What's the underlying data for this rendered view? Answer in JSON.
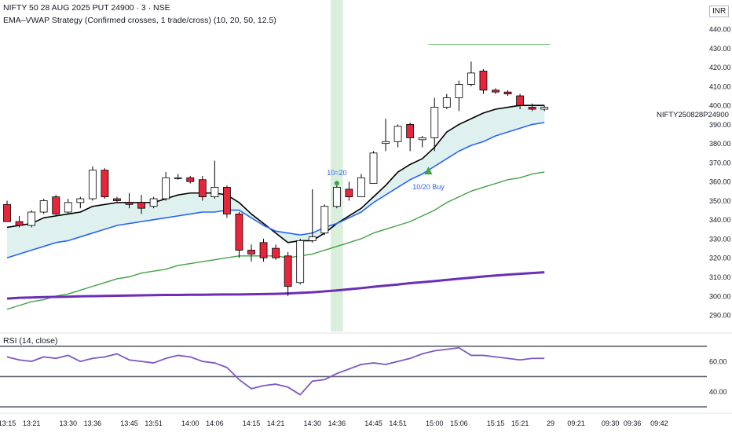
{
  "header": {
    "title": "NIFTY 50 28 AUG 2025 PUT 24900 · 3 · NSE",
    "strategy": "EMA–VWAP Strategy (Confirmed crosses, 1 trade/cross) (10, 20, 50, 12.5)",
    "currency": "INR",
    "symbol_tag": "NIFTY250828P24900"
  },
  "colors": {
    "up_fill": "#ffffff",
    "down_fill": "#e8263b",
    "candle_border": "#000000",
    "ema10": "#000000",
    "ema20": "#2962ff",
    "ema50": "#43a047",
    "vwap": "#6a2fb5",
    "band_fill": "#d8efec",
    "highlight": "#d9eedb",
    "rsi_line": "#7e57c2",
    "target_line": "#81c784",
    "signal": "#43a047",
    "signal_text": "#2962ff"
  },
  "chart_data": {
    "type": "candlestick",
    "y_ticks": [
      "290.00",
      "300.00",
      "310.00",
      "320.00",
      "330.00",
      "340.00",
      "350.00",
      "360.00",
      "370.00",
      "380.00",
      "390.00",
      "400.00",
      "410.00",
      "420.00",
      "430.00",
      "440.00"
    ],
    "ylim": [
      283,
      452
    ],
    "x_tick_labels": [
      {
        "i": 0,
        "label": "13:15"
      },
      {
        "i": 2,
        "label": "13:21"
      },
      {
        "i": 5,
        "label": "13:30"
      },
      {
        "i": 7,
        "label": "13:36"
      },
      {
        "i": 10,
        "label": "13:45"
      },
      {
        "i": 12,
        "label": "13:51"
      },
      {
        "i": 15,
        "label": "14:00"
      },
      {
        "i": 17,
        "label": "14:06"
      },
      {
        "i": 20,
        "label": "14:15"
      },
      {
        "i": 22,
        "label": "14:21"
      },
      {
        "i": 25,
        "label": "14:30"
      },
      {
        "i": 27,
        "label": "14:36"
      },
      {
        "i": 30,
        "label": "14:45"
      },
      {
        "i": 32,
        "label": "14:51"
      },
      {
        "i": 35,
        "label": "15:00"
      },
      {
        "i": 37,
        "label": "15:06"
      },
      {
        "i": 40,
        "label": "15:15"
      },
      {
        "i": 42,
        "label": "15:21"
      },
      {
        "i": 44.5,
        "label": "29"
      },
      {
        "i": 46.6,
        "label": "09:21"
      },
      {
        "i": 49.4,
        "label": "09:30"
      },
      {
        "i": 51.2,
        "label": "09:36"
      },
      {
        "i": 53.4,
        "label": "09:42"
      }
    ],
    "candles": [
      {
        "o": 348,
        "h": 350,
        "l": 340,
        "c": 339
      },
      {
        "o": 339,
        "h": 342,
        "l": 336,
        "c": 337
      },
      {
        "o": 337,
        "h": 345,
        "l": 336,
        "c": 344
      },
      {
        "o": 344,
        "h": 351,
        "l": 343,
        "c": 350
      },
      {
        "o": 352,
        "h": 353,
        "l": 342,
        "c": 343
      },
      {
        "o": 344,
        "h": 351,
        "l": 343,
        "c": 349
      },
      {
        "o": 349,
        "h": 352,
        "l": 346,
        "c": 351
      },
      {
        "o": 351,
        "h": 368,
        "l": 350,
        "c": 366
      },
      {
        "o": 366,
        "h": 367,
        "l": 351,
        "c": 352
      },
      {
        "o": 351,
        "h": 352,
        "l": 349,
        "c": 350
      },
      {
        "o": 349,
        "h": 354,
        "l": 346,
        "c": 348
      },
      {
        "o": 349,
        "h": 353,
        "l": 343,
        "c": 346
      },
      {
        "o": 347,
        "h": 352,
        "l": 346,
        "c": 351
      },
      {
        "o": 351,
        "h": 365,
        "l": 350,
        "c": 362
      },
      {
        "o": 362,
        "h": 364,
        "l": 361,
        "c": 362
      },
      {
        "o": 362,
        "h": 363,
        "l": 359,
        "c": 360
      },
      {
        "o": 361,
        "h": 363,
        "l": 350,
        "c": 352
      },
      {
        "o": 352,
        "h": 371,
        "l": 351,
        "c": 357
      },
      {
        "o": 357,
        "h": 358,
        "l": 341,
        "c": 343
      },
      {
        "o": 343,
        "h": 344,
        "l": 320,
        "c": 324
      },
      {
        "o": 324,
        "h": 327,
        "l": 318,
        "c": 322
      },
      {
        "o": 328,
        "h": 330,
        "l": 318,
        "c": 320
      },
      {
        "o": 325,
        "h": 327,
        "l": 319,
        "c": 320
      },
      {
        "o": 321,
        "h": 323,
        "l": 300,
        "c": 305
      },
      {
        "o": 307,
        "h": 330,
        "l": 306,
        "c": 329
      },
      {
        "o": 329,
        "h": 356,
        "l": 328,
        "c": 331
      },
      {
        "o": 333,
        "h": 348,
        "l": 332,
        "c": 347
      },
      {
        "o": 347,
        "h": 358,
        "l": 346,
        "c": 357
      },
      {
        "o": 356,
        "h": 360,
        "l": 350,
        "c": 352
      },
      {
        "o": 352,
        "h": 364,
        "l": 352,
        "c": 362
      },
      {
        "o": 359,
        "h": 376,
        "l": 359,
        "c": 375
      },
      {
        "o": 380,
        "h": 393,
        "l": 376,
        "c": 381
      },
      {
        "o": 381,
        "h": 390,
        "l": 378,
        "c": 389
      },
      {
        "o": 390,
        "h": 391,
        "l": 376,
        "c": 383
      },
      {
        "o": 382,
        "h": 384,
        "l": 378,
        "c": 383
      },
      {
        "o": 383,
        "h": 404,
        "l": 376,
        "c": 399
      },
      {
        "o": 399,
        "h": 406,
        "l": 398,
        "c": 404
      },
      {
        "o": 404,
        "h": 413,
        "l": 397,
        "c": 411
      },
      {
        "o": 411,
        "h": 423,
        "l": 410,
        "c": 417
      },
      {
        "o": 418,
        "h": 419,
        "l": 406,
        "c": 408
      },
      {
        "o": 408,
        "h": 409,
        "l": 406,
        "c": 407
      },
      {
        "o": 407,
        "h": 408,
        "l": 405,
        "c": 406
      },
      {
        "o": 405,
        "h": 406,
        "l": 398,
        "c": 400
      },
      {
        "o": 399,
        "h": 401,
        "l": 397,
        "c": 398
      },
      {
        "o": 398,
        "h": 400,
        "l": 397,
        "c": 399
      }
    ],
    "ema10": [
      336,
      337,
      338,
      341,
      342,
      343,
      344,
      347,
      348,
      349,
      349,
      349,
      349,
      351,
      353,
      354,
      354,
      354,
      353,
      349,
      343,
      338,
      333,
      328,
      329,
      329,
      333,
      338,
      342,
      346,
      352,
      358,
      365,
      369,
      372,
      378,
      386,
      390,
      393,
      396,
      398,
      399,
      400,
      400,
      400
    ],
    "ema20": [
      320,
      322,
      324,
      326,
      328,
      329,
      331,
      333,
      335,
      337,
      338,
      339,
      340,
      341,
      342,
      343,
      344,
      344,
      345,
      345,
      341,
      337,
      334,
      333,
      332,
      333,
      336,
      338,
      341,
      344,
      349,
      353,
      357,
      361,
      364,
      368,
      372,
      376,
      379,
      381,
      384,
      386,
      388,
      390,
      391
    ],
    "ema50": [
      293,
      295,
      297,
      298,
      300,
      301,
      303,
      305,
      307,
      309,
      310,
      312,
      313,
      314,
      316,
      317,
      318,
      319,
      320,
      321,
      321,
      321,
      321,
      320,
      321,
      322,
      324,
      326,
      328,
      330,
      333,
      335,
      337,
      339,
      342,
      345,
      349,
      352,
      355,
      357,
      359,
      361,
      362,
      364,
      365
    ],
    "vwap": [
      298.6,
      299.0,
      299.2,
      299.4,
      299.5,
      299.6,
      299.8,
      299.9,
      300.0,
      300.1,
      300.2,
      300.3,
      300.4,
      300.5,
      300.5,
      300.6,
      300.6,
      300.7,
      300.8,
      300.8,
      300.9,
      301.0,
      301.1,
      301.3,
      301.6,
      301.9,
      302.4,
      302.9,
      303.5,
      304.1,
      304.8,
      305.4,
      306.0,
      306.7,
      307.2,
      307.8,
      308.4,
      309.0,
      309.6,
      310.2,
      310.7,
      311.2,
      311.6,
      312.0,
      312.4
    ],
    "highlight_bar": 27,
    "target_line": {
      "y": 432,
      "from": 34.5,
      "to": 44.5
    },
    "signals": [
      {
        "i": 27,
        "price": 360,
        "kind": "dot",
        "label": "10=20"
      },
      {
        "i": 34.5,
        "price": 365,
        "kind": "triangle",
        "label": "10/20 Buy"
      }
    ]
  },
  "rsi": {
    "title": "RSI (14, close)",
    "ticks": [
      "60.00",
      "40.00"
    ],
    "ylim": [
      30,
      72
    ],
    "levels": [
      70,
      50,
      30
    ],
    "values": [
      63,
      61,
      60,
      63,
      62,
      64,
      60,
      62,
      63,
      65,
      61,
      60,
      59,
      62,
      64,
      63,
      60,
      59,
      56,
      48,
      42,
      44,
      45,
      43,
      38,
      47,
      48,
      52,
      55,
      58,
      59,
      58,
      60,
      62,
      65,
      67,
      68,
      69,
      64,
      64,
      63,
      62,
      61,
      62,
      62
    ]
  }
}
